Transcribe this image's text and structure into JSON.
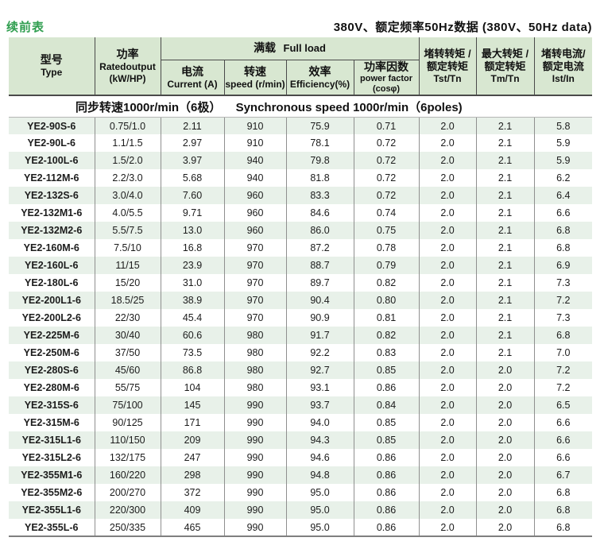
{
  "page": {
    "continued_label": "续前表",
    "title": "380V、额定频率50Hz数据 (380V、50Hz data)"
  },
  "colors": {
    "accent_green": "#2f9e4f",
    "header_bg": "#d8e7d1",
    "row_alt_bg": "#e8f1e9",
    "border_dark": "#4a4a4a",
    "border_light": "#8f8f8f"
  },
  "table": {
    "group_full_load": {
      "zh": "满载",
      "en": "Full load"
    },
    "columns": {
      "type": {
        "zh": "型号",
        "en": "Type"
      },
      "power": {
        "zh": "功率",
        "en": "Ratedoutput",
        "sub": "(kW/HP)"
      },
      "current": {
        "zh": "电流",
        "en": "Current (A)"
      },
      "speed": {
        "zh": "转速",
        "en": "speed (r/min)"
      },
      "efficiency": {
        "zh": "效率",
        "en": "Efficiency(%)"
      },
      "power_factor": {
        "zh": "功率因数",
        "en": "power factor",
        "sub": "(cosφ)"
      },
      "tst_tn": {
        "zh1": "堵转转矩 /",
        "zh2": "额定转矩",
        "en": "Tst/Tn"
      },
      "tm_tn": {
        "zh1": "最大转矩 /",
        "zh2": "额定转矩",
        "en": "Tm/Tn"
      },
      "ist_in": {
        "zh1": "堵转电流/",
        "zh2": "额定电流",
        "en": "Ist/In"
      }
    },
    "col_ids": [
      "type",
      "power",
      "current",
      "speed",
      "efficiency",
      "power_factor",
      "tst_tn",
      "tm_tn",
      "ist_in"
    ],
    "section_header": {
      "zh": "同步转速1000r/min（6极）",
      "en": "Synchronous speed 1000r/min（6poles)"
    },
    "rows": [
      [
        "YE2-90S-6",
        "0.75/1.0",
        "2.11",
        "910",
        "75.9",
        "0.71",
        "2.0",
        "2.1",
        "5.8"
      ],
      [
        "YE2-90L-6",
        "1.1/1.5",
        "2.97",
        "910",
        "78.1",
        "0.72",
        "2.0",
        "2.1",
        "5.9"
      ],
      [
        "YE2-100L-6",
        "1.5/2.0",
        "3.97",
        "940",
        "79.8",
        "0.72",
        "2.0",
        "2.1",
        "5.9"
      ],
      [
        "YE2-112M-6",
        "2.2/3.0",
        "5.68",
        "940",
        "81.8",
        "0.72",
        "2.0",
        "2.1",
        "6.2"
      ],
      [
        "YE2-132S-6",
        "3.0/4.0",
        "7.60",
        "960",
        "83.3",
        "0.72",
        "2.0",
        "2.1",
        "6.4"
      ],
      [
        "YE2-132M1-6",
        "4.0/5.5",
        "9.71",
        "960",
        "84.6",
        "0.74",
        "2.0",
        "2.1",
        "6.6"
      ],
      [
        "YE2-132M2-6",
        "5.5/7.5",
        "13.0",
        "960",
        "86.0",
        "0.75",
        "2.0",
        "2.1",
        "6.8"
      ],
      [
        "YE2-160M-6",
        "7.5/10",
        "16.8",
        "970",
        "87.2",
        "0.78",
        "2.0",
        "2.1",
        "6.8"
      ],
      [
        "YE2-160L-6",
        "11/15",
        "23.9",
        "970",
        "88.7",
        "0.79",
        "2.0",
        "2.1",
        "6.9"
      ],
      [
        "YE2-180L-6",
        "15/20",
        "31.0",
        "970",
        "89.7",
        "0.82",
        "2.0",
        "2.1",
        "7.3"
      ],
      [
        "YE2-200L1-6",
        "18.5/25",
        "38.9",
        "970",
        "90.4",
        "0.80",
        "2.0",
        "2.1",
        "7.2"
      ],
      [
        "YE2-200L2-6",
        "22/30",
        "45.4",
        "970",
        "90.9",
        "0.81",
        "2.0",
        "2.1",
        "7.3"
      ],
      [
        "YE2-225M-6",
        "30/40",
        "60.6",
        "980",
        "91.7",
        "0.82",
        "2.0",
        "2.1",
        "6.8"
      ],
      [
        "YE2-250M-6",
        "37/50",
        "73.5",
        "980",
        "92.2",
        "0.83",
        "2.0",
        "2.1",
        "7.0"
      ],
      [
        "YE2-280S-6",
        "45/60",
        "86.8",
        "980",
        "92.7",
        "0.85",
        "2.0",
        "2.0",
        "7.2"
      ],
      [
        "YE2-280M-6",
        "55/75",
        "104",
        "980",
        "93.1",
        "0.86",
        "2.0",
        "2.0",
        "7.2"
      ],
      [
        "YE2-315S-6",
        "75/100",
        "145",
        "990",
        "93.7",
        "0.84",
        "2.0",
        "2.0",
        "6.5"
      ],
      [
        "YE2-315M-6",
        "90/125",
        "171",
        "990",
        "94.0",
        "0.85",
        "2.0",
        "2.0",
        "6.6"
      ],
      [
        "YE2-315L1-6",
        "110/150",
        "209",
        "990",
        "94.3",
        "0.85",
        "2.0",
        "2.0",
        "6.6"
      ],
      [
        "YE2-315L2-6",
        "132/175",
        "247",
        "990",
        "94.6",
        "0.86",
        "2.0",
        "2.0",
        "6.6"
      ],
      [
        "YE2-355M1-6",
        "160/220",
        "298",
        "990",
        "94.8",
        "0.86",
        "2.0",
        "2.0",
        "6.7"
      ],
      [
        "YE2-355M2-6",
        "200/270",
        "372",
        "990",
        "95.0",
        "0.86",
        "2.0",
        "2.0",
        "6.8"
      ],
      [
        "YE2-355L1-6",
        "220/300",
        "409",
        "990",
        "95.0",
        "0.86",
        "2.0",
        "2.0",
        "6.8"
      ],
      [
        "YE2-355L-6",
        "250/335",
        "465",
        "990",
        "95.0",
        "0.86",
        "2.0",
        "2.0",
        "6.8"
      ]
    ]
  }
}
